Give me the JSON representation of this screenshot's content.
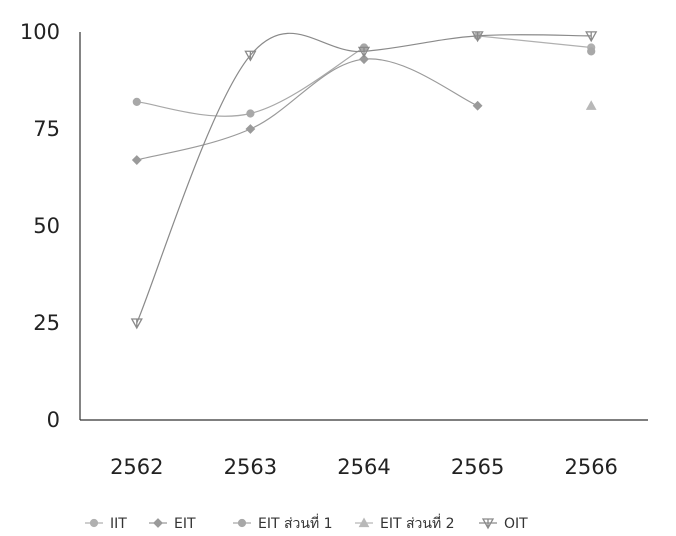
{
  "chart_data": {
    "type": "line",
    "title": "",
    "xlabel": "",
    "ylabel": "",
    "categories": [
      "2562",
      "2563",
      "2564",
      "2565",
      "2566"
    ],
    "ylim": [
      0,
      100
    ],
    "yticks": [
      0,
      25,
      50,
      75,
      100
    ],
    "grid": false,
    "legend_position": "bottom",
    "series": [
      {
        "name": "IIT",
        "values": [
          null,
          null,
          null,
          99,
          96
        ],
        "color": "#b0b0b0",
        "smooth": false,
        "marker": "circle"
      },
      {
        "name": "EIT",
        "values": [
          67,
          75,
          93,
          81,
          null
        ],
        "color": "#9a9a9a",
        "smooth": true,
        "marker": "diamond"
      },
      {
        "name": "EIT ส่วนที่ 1",
        "values": [
          82,
          79,
          96,
          null,
          95
        ],
        "color": "#a8a8a8",
        "smooth": true,
        "marker": "circle"
      },
      {
        "name": "EIT ส่วนที่ 2",
        "values": [
          null,
          null,
          null,
          null,
          81
        ],
        "color": "#b8b8b8",
        "smooth": false,
        "marker": "triangle"
      },
      {
        "name": "OIT",
        "values": [
          25,
          94,
          95,
          99,
          99
        ],
        "color": "#8a8a8a",
        "smooth": true,
        "marker": "star"
      }
    ]
  }
}
